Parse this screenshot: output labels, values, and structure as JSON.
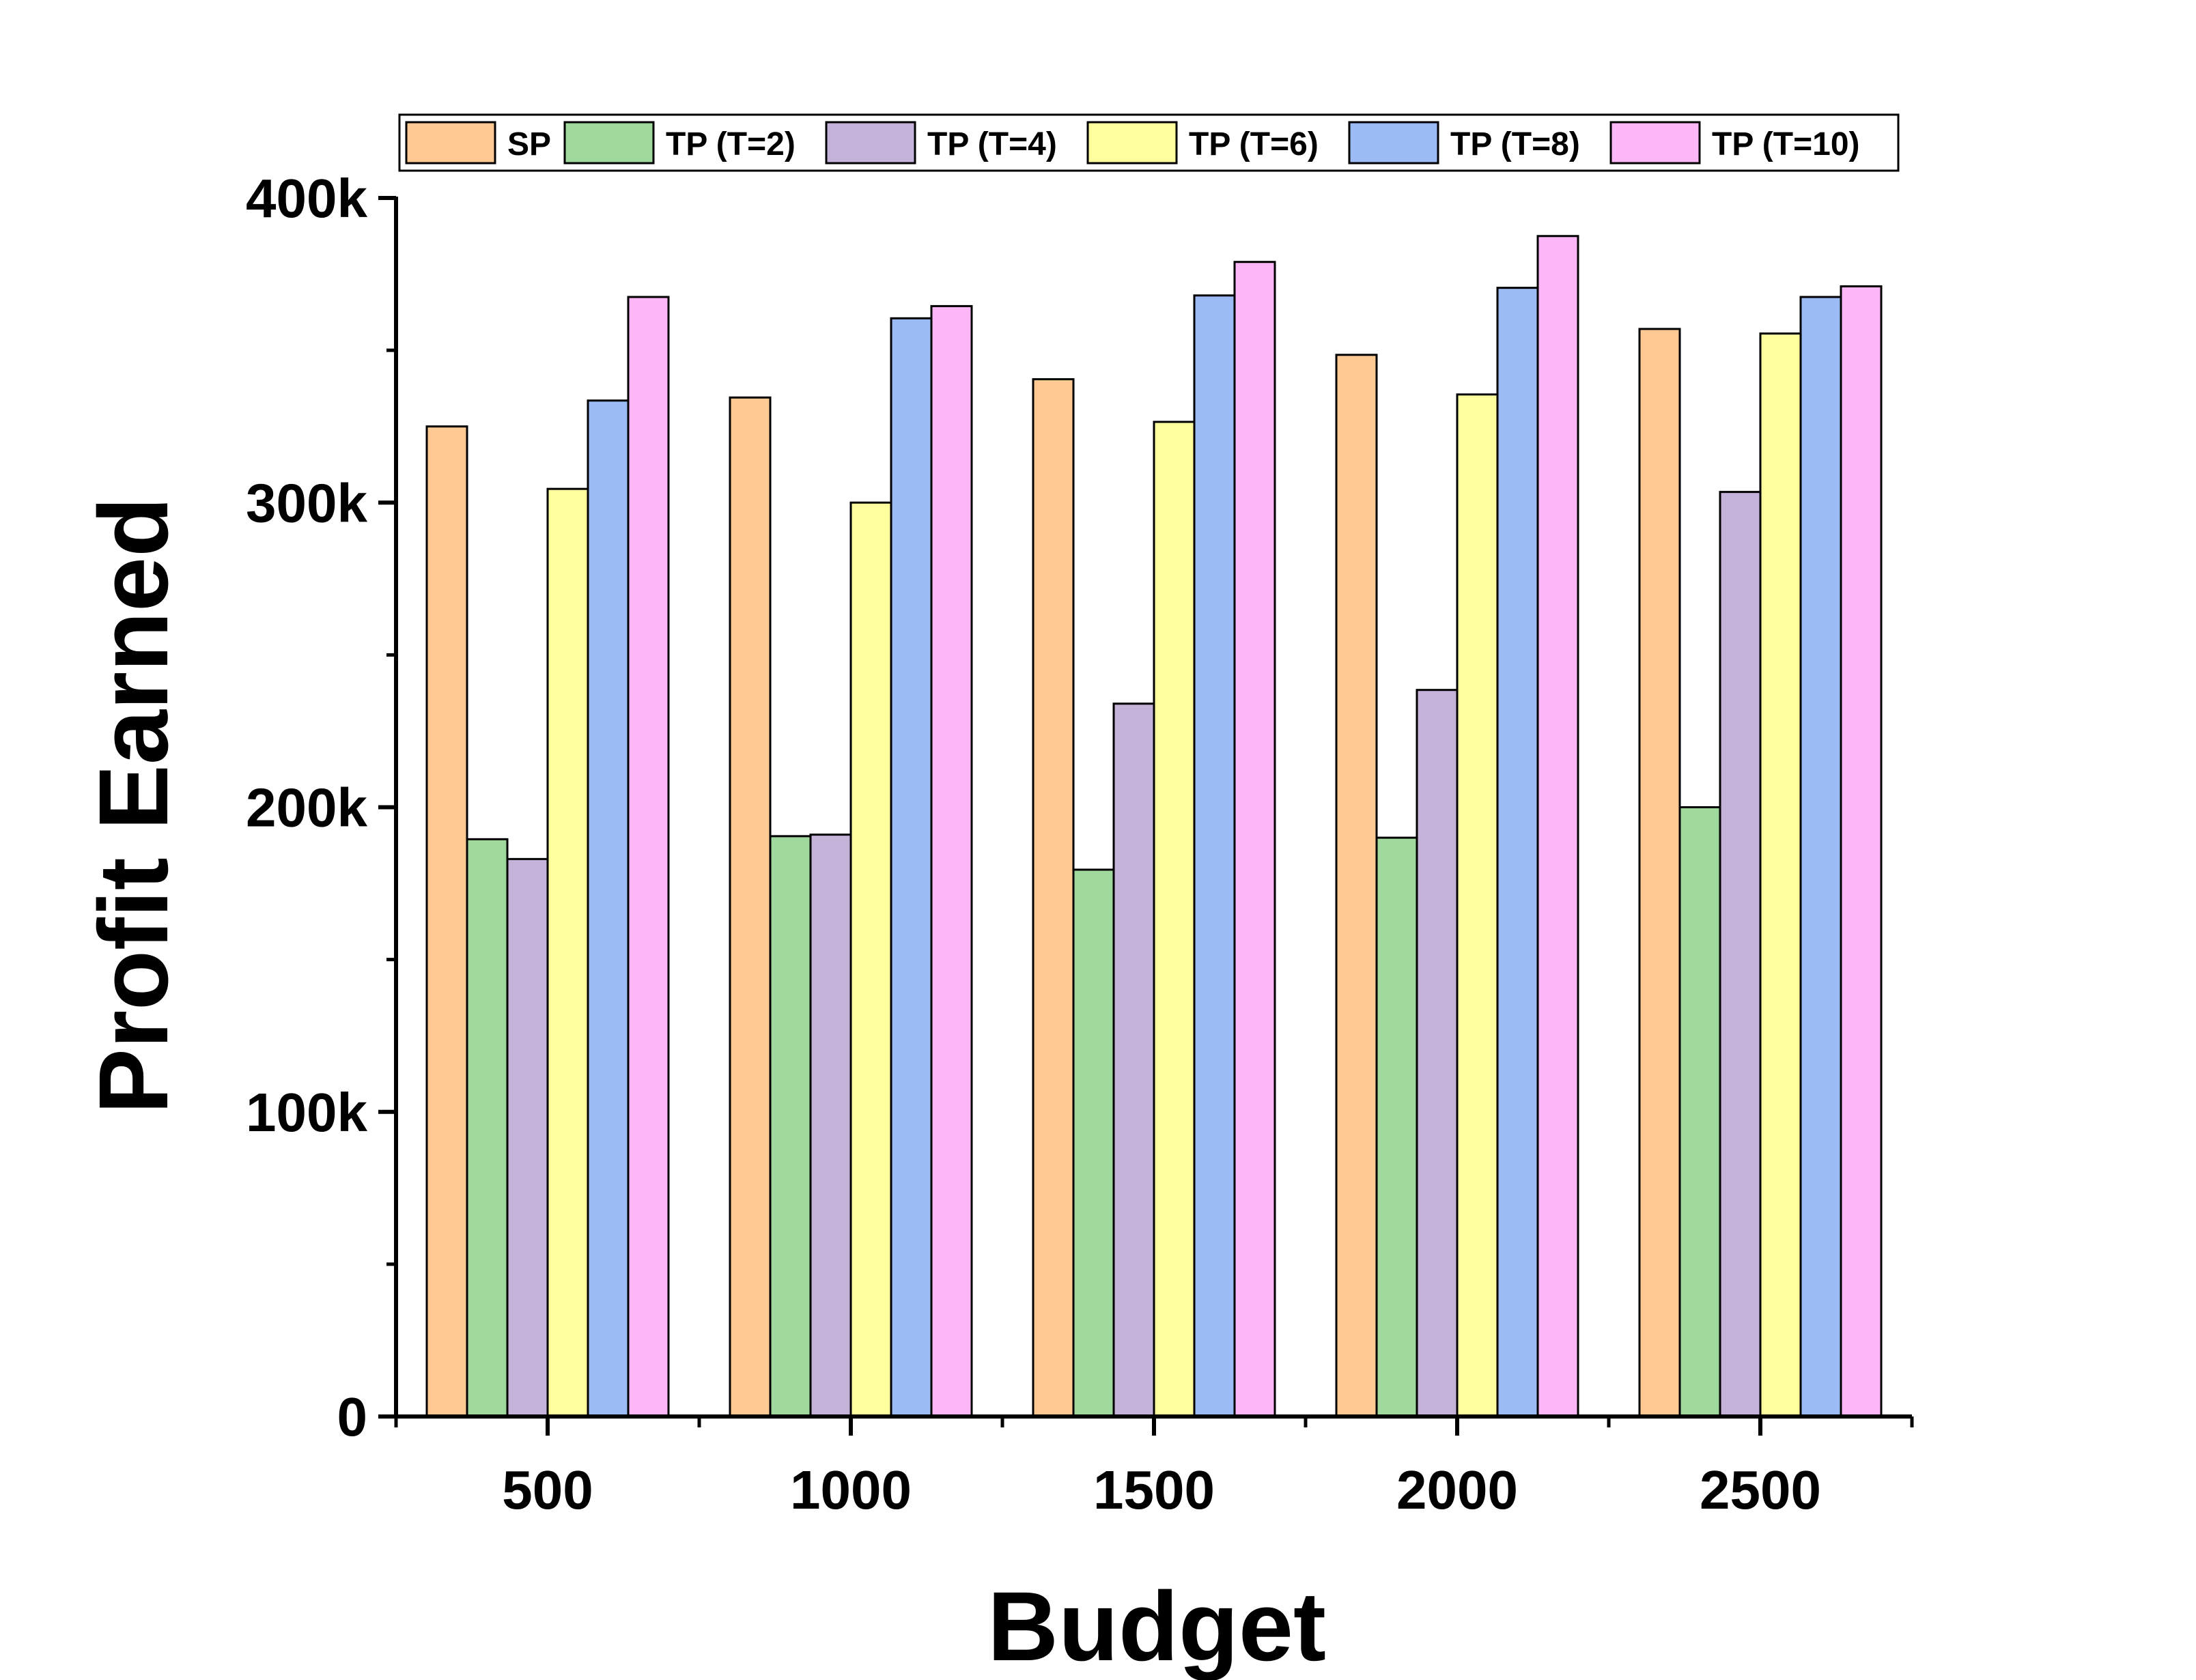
{
  "chart_data": {
    "type": "bar",
    "xlabel": "Budget",
    "ylabel": "Profit Earned",
    "categories": [
      "500",
      "1000",
      "1500",
      "2000",
      "2500"
    ],
    "ylim": [
      0,
      400000
    ],
    "yticks": [
      {
        "value": 0,
        "label": "0"
      },
      {
        "value": 100000,
        "label": "100k"
      },
      {
        "value": 200000,
        "label": "200k"
      },
      {
        "value": 300000,
        "label": "300k"
      },
      {
        "value": 400000,
        "label": "400k"
      }
    ],
    "y_minor_step": 50000,
    "grid": false,
    "legend_position": "top",
    "series": [
      {
        "name": "SP",
        "color": "#FFC993",
        "values": [
          325000,
          334500,
          340500,
          348500,
          357000
        ]
      },
      {
        "name": "TP (T=2)",
        "color": "#A0D89D",
        "values": [
          189500,
          190500,
          179500,
          190000,
          200000
        ]
      },
      {
        "name": "TP (T=4)",
        "color": "#C4B2D8",
        "values": [
          183000,
          191000,
          234000,
          238500,
          303500
        ]
      },
      {
        "name": "TP (T=6)",
        "color": "#FFFE9F",
        "values": [
          304500,
          300000,
          326500,
          335500,
          355500
        ]
      },
      {
        "name": "TP (T=8)",
        "color": "#9CBBF4",
        "values": [
          333500,
          360500,
          368000,
          370500,
          367500
        ]
      },
      {
        "name": "TP (T=10)",
        "color": "#FDB7F6",
        "values": [
          367500,
          364500,
          379000,
          387500,
          371000
        ]
      }
    ]
  }
}
